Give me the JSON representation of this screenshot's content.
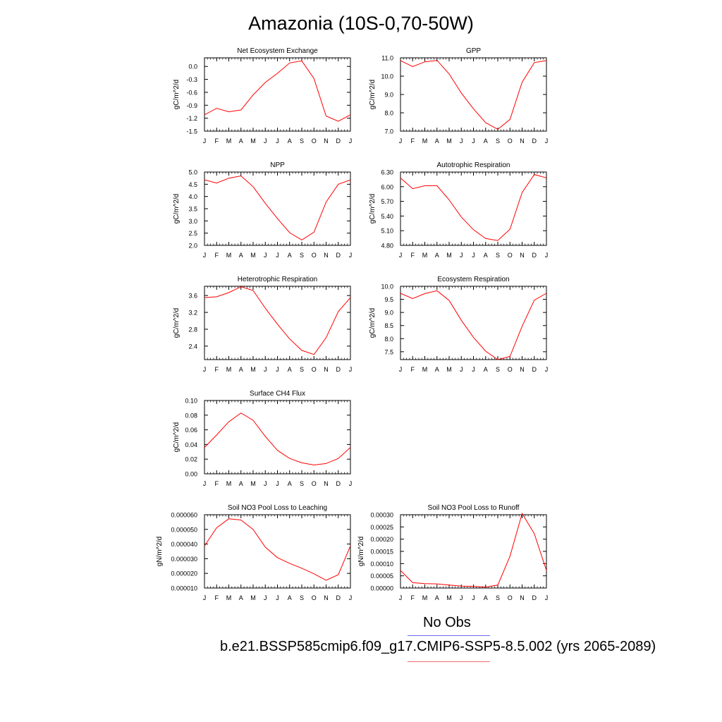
{
  "title": "Amazonia (10S-0,70-50W)",
  "legend": {
    "obs_label": "No Obs",
    "case_label": "b.e21.BSSP585cmip6.f09_g17.CMIP6-SSP5-8.5.002 (yrs 2065-2089)",
    "obs_color": "#6c6cf0",
    "case_color": "#f07070"
  },
  "line_color": "#ff0000",
  "chart_data": [
    {
      "type": "line",
      "title": "Net Ecosystem Exchange",
      "ylabel": "gC/m^2/d",
      "x": [
        "J",
        "F",
        "M",
        "A",
        "M",
        "J",
        "J",
        "A",
        "S",
        "O",
        "N",
        "D",
        "J"
      ],
      "ylim": [
        -1.5,
        0.2
      ],
      "yticks": [
        -1.5,
        -1.2,
        -0.9,
        -0.6,
        -0.3,
        0.0
      ],
      "ytick_labels": [
        "-1.5",
        "-1.2",
        "-0.9",
        "-0.6",
        "-0.3",
        "0.0"
      ],
      "series": [
        {
          "values": [
            -1.12,
            -0.97,
            -1.05,
            -1.01,
            -0.66,
            -0.37,
            -0.16,
            0.08,
            0.13,
            -0.28,
            -1.15,
            -1.27,
            -1.12
          ]
        }
      ]
    },
    {
      "type": "line",
      "title": "GPP",
      "ylabel": "gC/m^2/d",
      "x": [
        "J",
        "F",
        "M",
        "A",
        "M",
        "J",
        "J",
        "A",
        "S",
        "O",
        "N",
        "D",
        "J"
      ],
      "ylim": [
        7.0,
        11.0
      ],
      "yticks": [
        7.0,
        8.0,
        9.0,
        10.0,
        11.0
      ],
      "ytick_labels": [
        "7.0",
        "8.0",
        "9.0",
        "10.0",
        "11.0"
      ],
      "series": [
        {
          "values": [
            10.85,
            10.52,
            10.78,
            10.86,
            10.12,
            9.08,
            8.22,
            7.46,
            7.1,
            7.64,
            9.67,
            10.74,
            10.85
          ]
        }
      ]
    },
    {
      "type": "line",
      "title": "NPP",
      "ylabel": "gC/m^2/d",
      "x": [
        "J",
        "F",
        "M",
        "A",
        "M",
        "J",
        "J",
        "A",
        "S",
        "O",
        "N",
        "D",
        "J"
      ],
      "ylim": [
        2.0,
        5.0
      ],
      "yticks": [
        2.0,
        2.5,
        3.0,
        3.5,
        4.0,
        4.5,
        5.0
      ],
      "ytick_labels": [
        "2.0",
        "2.5",
        "3.0",
        "3.5",
        "4.0",
        "4.5",
        "5.0"
      ],
      "series": [
        {
          "values": [
            4.68,
            4.55,
            4.75,
            4.84,
            4.4,
            3.72,
            3.1,
            2.52,
            2.22,
            2.54,
            3.77,
            4.5,
            4.68
          ]
        }
      ]
    },
    {
      "type": "line",
      "title": "Autotrophic Respiration",
      "ylabel": "gC/m^2/d",
      "x": [
        "J",
        "F",
        "M",
        "A",
        "M",
        "J",
        "J",
        "A",
        "S",
        "O",
        "N",
        "D",
        "J"
      ],
      "ylim": [
        4.8,
        6.3
      ],
      "yticks": [
        4.8,
        5.1,
        5.4,
        5.7,
        6.0,
        6.3
      ],
      "ytick_labels": [
        "4.80",
        "5.10",
        "5.40",
        "5.70",
        "6.00",
        "6.30"
      ],
      "series": [
        {
          "values": [
            6.18,
            5.96,
            6.02,
            6.02,
            5.73,
            5.38,
            5.12,
            4.94,
            4.9,
            5.13,
            5.88,
            6.25,
            6.18
          ]
        }
      ]
    },
    {
      "type": "line",
      "title": "Heterotrophic Respiration",
      "ylabel": "gC/m^2/d",
      "x": [
        "J",
        "F",
        "M",
        "A",
        "M",
        "J",
        "J",
        "A",
        "S",
        "O",
        "N",
        "D",
        "J"
      ],
      "ylim": [
        2.08,
        3.82
      ],
      "yticks": [
        2.4,
        2.8,
        3.2,
        3.6
      ],
      "ytick_labels": [
        "2.4",
        "2.8",
        "3.2",
        "3.6"
      ],
      "series": [
        {
          "values": [
            3.55,
            3.57,
            3.67,
            3.81,
            3.72,
            3.3,
            2.92,
            2.57,
            2.3,
            2.2,
            2.6,
            3.22,
            3.55
          ]
        }
      ]
    },
    {
      "type": "line",
      "title": "Ecosystem Respiration",
      "ylabel": "gC/m^2/d",
      "x": [
        "J",
        "F",
        "M",
        "A",
        "M",
        "J",
        "J",
        "A",
        "S",
        "O",
        "N",
        "D",
        "J"
      ],
      "ylim": [
        7.2,
        10.0
      ],
      "yticks": [
        7.5,
        8.0,
        8.5,
        9.0,
        9.5,
        10.0
      ],
      "ytick_labels": [
        "7.5",
        "8.0",
        "8.5",
        "9.0",
        "9.5",
        "10.0"
      ],
      "series": [
        {
          "values": [
            9.73,
            9.53,
            9.72,
            9.83,
            9.46,
            8.7,
            8.05,
            7.52,
            7.2,
            7.32,
            8.47,
            9.47,
            9.73
          ]
        }
      ]
    },
    {
      "type": "line",
      "title": "Surface CH4 Flux",
      "ylabel": "gC/m^2/d",
      "x": [
        "J",
        "F",
        "M",
        "A",
        "M",
        "J",
        "J",
        "A",
        "S",
        "O",
        "N",
        "D",
        "J"
      ],
      "ylim": [
        0.0,
        0.1
      ],
      "yticks": [
        0.0,
        0.02,
        0.04,
        0.06,
        0.08,
        0.1
      ],
      "ytick_labels": [
        "0.00",
        "0.02",
        "0.04",
        "0.06",
        "0.08",
        "0.10"
      ],
      "series": [
        {
          "values": [
            0.036,
            0.053,
            0.071,
            0.083,
            0.073,
            0.051,
            0.032,
            0.021,
            0.015,
            0.012,
            0.014,
            0.021,
            0.036
          ]
        }
      ]
    },
    {
      "type": "line",
      "title": "Soil NO3 Pool Loss to Leaching",
      "ylabel": "gN/m^2/d",
      "x": [
        "J",
        "F",
        "M",
        "A",
        "M",
        "J",
        "J",
        "A",
        "S",
        "O",
        "N",
        "D",
        "J"
      ],
      "ylim": [
        1e-05,
        6e-05
      ],
      "yticks": [
        1e-05,
        2e-05,
        3e-05,
        4e-05,
        5e-05,
        6e-05
      ],
      "ytick_labels": [
        "0.000010",
        "0.000020",
        "0.000030",
        "0.000040",
        "0.000050",
        "0.000060"
      ],
      "series": [
        {
          "values": [
            3.87e-05,
            5.11e-05,
            5.72e-05,
            5.64e-05,
            4.99e-05,
            3.79e-05,
            3.07e-05,
            2.68e-05,
            2.35e-05,
            1.97e-05,
            1.53e-05,
            1.91e-05,
            3.87e-05
          ]
        }
      ]
    },
    {
      "type": "line",
      "title": "Soil NO3 Pool Loss to Runoff",
      "ylabel": "gN/m^2/d",
      "x": [
        "J",
        "F",
        "M",
        "A",
        "M",
        "J",
        "J",
        "A",
        "S",
        "O",
        "N",
        "D",
        "J"
      ],
      "ylim": [
        0.0,
        0.0003
      ],
      "yticks": [
        0.0,
        5e-05,
        0.0001,
        0.00015,
        0.0002,
        0.00025,
        0.0003
      ],
      "ytick_labels": [
        "0.00000",
        "0.00005",
        "0.00010",
        "0.00015",
        "0.00020",
        "0.00025",
        "0.00030"
      ],
      "series": [
        {
          "values": [
            7.2e-05,
            2.2e-05,
            1.8e-05,
            1.7e-05,
            1.2e-05,
            8e-06,
            7e-06,
            4e-06,
            1.2e-05,
            0.00013,
            0.000305,
            0.000222,
            7.2e-05
          ]
        }
      ]
    }
  ]
}
